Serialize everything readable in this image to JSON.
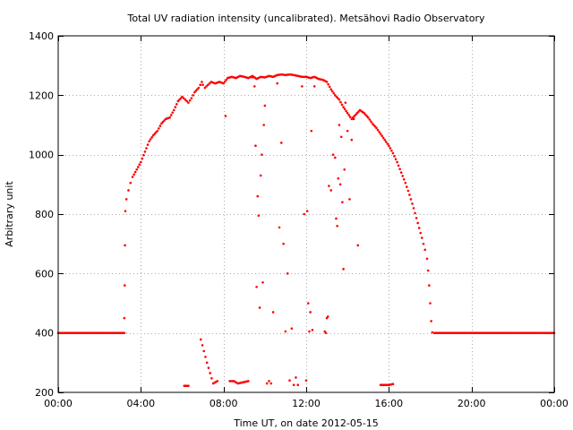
{
  "chart_data": {
    "type": "scatter",
    "title": "Total UV radiation intensity (uncalibrated). Metsähovi Radio Observatory",
    "xlabel": "Time UT, on date 2012-05-15",
    "ylabel": "Arbitrary unit",
    "x_unit": "hours UT",
    "xlim": [
      0,
      24
    ],
    "ylim": [
      200,
      1400
    ],
    "x_ticks": [
      {
        "value": 0,
        "label": "00:00"
      },
      {
        "value": 4,
        "label": "04:00"
      },
      {
        "value": 8,
        "label": "08:00"
      },
      {
        "value": 12,
        "label": "12:00"
      },
      {
        "value": 16,
        "label": "16:00"
      },
      {
        "value": 20,
        "label": "20:00"
      },
      {
        "value": 24,
        "label": "00:00"
      }
    ],
    "y_ticks": [
      {
        "value": 200,
        "label": "200"
      },
      {
        "value": 400,
        "label": "400"
      },
      {
        "value": 600,
        "label": "600"
      },
      {
        "value": 800,
        "label": "800"
      },
      {
        "value": 1000,
        "label": "1000"
      },
      {
        "value": 1200,
        "label": "1200"
      },
      {
        "value": 1400,
        "label": "1400"
      }
    ],
    "grid": true,
    "legend": "none",
    "marker_color": "#ff0000",
    "series": [
      {
        "points": [
          [
            0.0,
            400
          ],
          [
            0.5,
            400
          ],
          [
            1.0,
            400
          ],
          [
            1.5,
            400
          ],
          [
            2.0,
            400
          ],
          [
            2.5,
            400
          ],
          [
            3.0,
            400
          ],
          [
            3.2,
            400
          ],
          [
            3.2,
            450
          ],
          [
            3.22,
            560
          ],
          [
            3.23,
            695
          ],
          [
            3.25,
            810
          ],
          [
            3.3,
            850
          ],
          [
            3.4,
            880
          ],
          [
            3.5,
            905
          ],
          [
            3.6,
            925
          ],
          [
            3.8,
            950
          ],
          [
            4.0,
            975
          ],
          [
            4.2,
            1010
          ],
          [
            4.4,
            1045
          ],
          [
            4.6,
            1065
          ],
          [
            4.8,
            1080
          ],
          [
            5.0,
            1105
          ],
          [
            5.2,
            1120
          ],
          [
            5.4,
            1125
          ],
          [
            5.6,
            1150
          ],
          [
            5.8,
            1180
          ],
          [
            6.0,
            1195
          ],
          [
            6.15,
            1185
          ],
          [
            6.3,
            1175
          ],
          [
            6.45,
            1190
          ],
          [
            6.6,
            1210
          ],
          [
            6.8,
            1225
          ],
          [
            6.95,
            1245
          ],
          [
            7.0,
            1235
          ],
          [
            7.1,
            1225
          ],
          [
            7.25,
            1235
          ],
          [
            7.4,
            1245
          ],
          [
            7.6,
            1240
          ],
          [
            7.8,
            1245
          ],
          [
            8.0,
            1240
          ],
          [
            8.2,
            1258
          ],
          [
            8.4,
            1262
          ],
          [
            8.6,
            1258
          ],
          [
            8.8,
            1265
          ],
          [
            9.0,
            1262
          ],
          [
            9.2,
            1258
          ],
          [
            9.4,
            1265
          ],
          [
            9.6,
            1255
          ],
          [
            9.8,
            1262
          ],
          [
            10.0,
            1260
          ],
          [
            10.2,
            1265
          ],
          [
            10.4,
            1262
          ],
          [
            10.6,
            1268
          ],
          [
            10.8,
            1270
          ],
          [
            11.0,
            1268
          ],
          [
            11.2,
            1270
          ],
          [
            11.4,
            1268
          ],
          [
            11.6,
            1265
          ],
          [
            11.8,
            1262
          ],
          [
            12.0,
            1262
          ],
          [
            12.2,
            1258
          ],
          [
            12.4,
            1262
          ],
          [
            12.6,
            1255
          ],
          [
            12.8,
            1252
          ],
          [
            13.0,
            1245
          ],
          [
            13.2,
            1220
          ],
          [
            13.4,
            1200
          ],
          [
            13.6,
            1185
          ],
          [
            13.8,
            1160
          ],
          [
            14.0,
            1140
          ],
          [
            14.2,
            1120
          ],
          [
            14.4,
            1135
          ],
          [
            14.6,
            1150
          ],
          [
            14.8,
            1140
          ],
          [
            15.0,
            1125
          ],
          [
            15.2,
            1105
          ],
          [
            15.4,
            1090
          ],
          [
            15.6,
            1070
          ],
          [
            15.8,
            1050
          ],
          [
            16.0,
            1030
          ],
          [
            16.2,
            1005
          ],
          [
            16.4,
            975
          ],
          [
            16.6,
            940
          ],
          [
            16.8,
            905
          ],
          [
            17.0,
            865
          ],
          [
            17.2,
            820
          ],
          [
            17.4,
            770
          ],
          [
            17.6,
            720
          ],
          [
            17.75,
            680
          ],
          [
            17.85,
            650
          ],
          [
            17.9,
            610
          ],
          [
            17.95,
            560
          ],
          [
            18.0,
            500
          ],
          [
            18.05,
            440
          ],
          [
            18.1,
            402
          ],
          [
            18.2,
            400
          ],
          [
            19.0,
            400
          ],
          [
            20.0,
            400
          ],
          [
            21.0,
            400
          ],
          [
            22.0,
            400
          ],
          [
            23.0,
            400
          ],
          [
            24.0,
            400
          ],
          [
            6.1,
            222
          ],
          [
            6.3,
            222
          ],
          [
            6.9,
            378
          ],
          [
            7.2,
            300
          ],
          [
            7.5,
            230
          ],
          [
            7.7,
            238
          ],
          [
            8.1,
            1130
          ],
          [
            8.3,
            238
          ],
          [
            8.5,
            238
          ],
          [
            8.7,
            230
          ],
          [
            9.2,
            238
          ],
          [
            9.4,
            1260
          ],
          [
            9.5,
            1230
          ],
          [
            9.55,
            1030
          ],
          [
            9.6,
            555
          ],
          [
            9.65,
            860
          ],
          [
            9.7,
            795
          ],
          [
            9.75,
            485
          ],
          [
            9.8,
            930
          ],
          [
            9.85,
            1000
          ],
          [
            9.9,
            570
          ],
          [
            9.95,
            1100
          ],
          [
            10.0,
            1165
          ],
          [
            10.1,
            230
          ],
          [
            10.2,
            238
          ],
          [
            10.3,
            230
          ],
          [
            10.4,
            470
          ],
          [
            10.6,
            1240
          ],
          [
            10.7,
            755
          ],
          [
            10.8,
            1040
          ],
          [
            10.9,
            700
          ],
          [
            11.0,
            405
          ],
          [
            11.1,
            600
          ],
          [
            11.2,
            240
          ],
          [
            11.3,
            415
          ],
          [
            11.4,
            225
          ],
          [
            11.5,
            250
          ],
          [
            11.6,
            225
          ],
          [
            11.8,
            1230
          ],
          [
            11.9,
            800
          ],
          [
            12.0,
            240
          ],
          [
            12.05,
            810
          ],
          [
            12.1,
            500
          ],
          [
            12.15,
            405
          ],
          [
            12.2,
            470
          ],
          [
            12.25,
            1080
          ],
          [
            12.3,
            410
          ],
          [
            12.4,
            1230
          ],
          [
            12.9,
            405
          ],
          [
            12.95,
            400
          ],
          [
            13.0,
            450
          ],
          [
            13.05,
            455
          ],
          [
            13.1,
            895
          ],
          [
            13.2,
            880
          ],
          [
            13.3,
            1000
          ],
          [
            13.4,
            990
          ],
          [
            13.45,
            785
          ],
          [
            13.5,
            760
          ],
          [
            13.55,
            920
          ],
          [
            13.6,
            1100
          ],
          [
            13.65,
            900
          ],
          [
            13.7,
            1060
          ],
          [
            13.75,
            840
          ],
          [
            13.8,
            615
          ],
          [
            13.85,
            950
          ],
          [
            13.9,
            1175
          ],
          [
            14.0,
            1080
          ],
          [
            14.1,
            850
          ],
          [
            14.2,
            1050
          ],
          [
            14.3,
            1120
          ],
          [
            14.5,
            695
          ],
          [
            15.6,
            225
          ],
          [
            15.8,
            225
          ],
          [
            16.0,
            225
          ],
          [
            16.2,
            228
          ]
        ]
      }
    ]
  }
}
